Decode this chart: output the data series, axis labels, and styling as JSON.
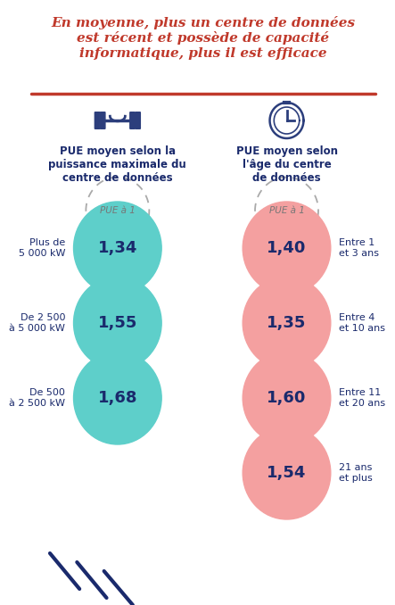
{
  "title_line1": "En moyenne, plus un centre de données",
  "title_line2": "est récent et possède de capacité",
  "title_line3": "informatique, plus il est efficace",
  "title_color": "#c0392b",
  "bg_color": "#ffffff",
  "left_subtitle": "PUE moyen selon la\npuissance maximale du\ncentre de données",
  "right_subtitle": "PUE moyen selon\nl'âge du centre\nde données",
  "subtitle_color": "#1a2a6c",
  "pue_label": "PUE à 1",
  "left_circles": [
    {
      "value": "1,34",
      "label": "Plus de\n5 000 kW"
    },
    {
      "value": "1,55",
      "label": "De 2 500\nà 5 000 kW"
    },
    {
      "value": "1,68",
      "label": "De 500\nà 2 500 kW"
    }
  ],
  "right_circles": [
    {
      "value": "1,40",
      "label": "Entre 1\net 3 ans"
    },
    {
      "value": "1,35",
      "label": "Entre 4\net 10 ans"
    },
    {
      "value": "1,60",
      "label": "Entre 11\net 20 ans"
    },
    {
      "value": "1,54",
      "label": "21 ans\net plus"
    }
  ],
  "teal_color": "#5ecfca",
  "pink_color": "#f4a0a0",
  "dashed_circle_color": "#aaaaaa",
  "value_color": "#1a2a6c",
  "label_color": "#1a2a6c",
  "line_color": "#c0392b",
  "slash_color": "#1a2a6c",
  "icon_color": "#2c3e7c"
}
